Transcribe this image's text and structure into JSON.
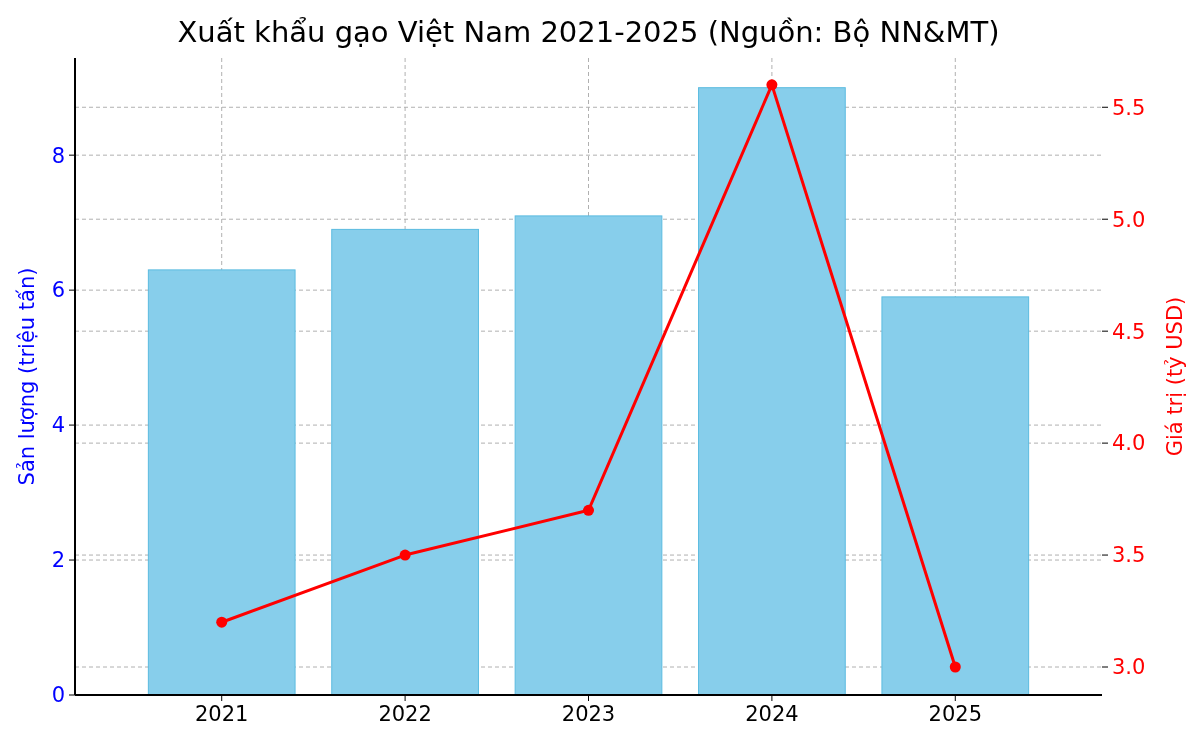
{
  "chart_data": {
    "type": "bar",
    "title": "Xuất khẩu gạo Việt Nam 2021-2025 (Nguồn: Bộ NN&MT)",
    "ylabel": "Sản lượng (triệu tấn)",
    "y2label": "Giá trị (tỷ USD)",
    "categories": [
      "2021",
      "2022",
      "2023",
      "2024",
      "2025"
    ],
    "series": [
      {
        "color": "#87ceeb",
        "values": [
          6.3,
          6.9,
          7.1,
          9.0,
          5.9
        ]
      },
      {
        "type": "line",
        "axis": "y2",
        "color": "#ff0000",
        "values": [
          3.2,
          3.5,
          3.7,
          5.6,
          3.0
        ]
      }
    ],
    "ylim": [
      0,
      9.44
    ],
    "yticks": [
      0,
      2,
      4,
      6,
      8
    ],
    "y2lim": [
      2.875,
      5.72
    ],
    "y2ticks": [
      {
        "value": 3,
        "label": "3.0"
      },
      {
        "value": 3.5,
        "label": "3.5"
      },
      {
        "value": 4,
        "label": "4.0"
      },
      {
        "value": 4.5,
        "label": "4.5"
      },
      {
        "value": 5,
        "label": "5.0"
      },
      {
        "value": 5.5,
        "label": "5.5"
      }
    ],
    "grid": true,
    "marker": "circle",
    "line_style": "solid"
  }
}
